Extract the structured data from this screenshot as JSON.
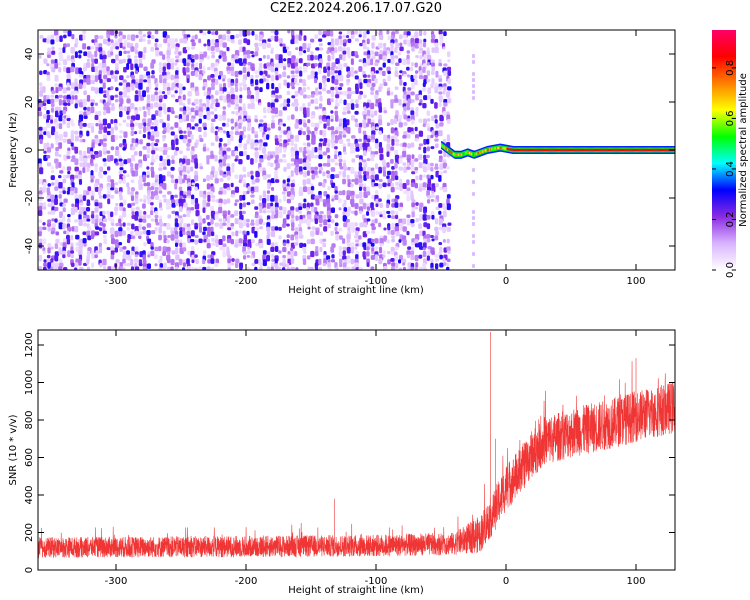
{
  "title": "C2E2.2024.206.17.07.G20",
  "chart_data": [
    {
      "type": "heatmap",
      "xlabel": "Height of straight line (km)",
      "ylabel": "Frequency (Hz)",
      "xlim": [
        -360,
        130
      ],
      "ylim": [
        -50,
        50
      ],
      "xticks": [
        -300,
        -200,
        -100,
        0,
        100
      ],
      "xtick_labels": [
        "-300",
        "-200",
        "-100",
        "0",
        "100"
      ],
      "yticks": [
        -40,
        -20,
        0,
        20,
        40
      ],
      "ytick_labels": [
        "-40",
        "-20",
        "0",
        "20",
        "40"
      ],
      "colorbar": {
        "label": "Normalized spectral amplitude",
        "range": [
          0,
          0.95
        ],
        "ticks": [
          0.0,
          0.2,
          0.4,
          0.6,
          0.8
        ],
        "tick_labels": [
          "0.0",
          "0.2",
          "0.4",
          "0.6",
          "0.8"
        ],
        "colormap": [
          "#ffffff",
          "#d9b3ff",
          "#8a2be2",
          "#0000ff",
          "#00ffff",
          "#00ff00",
          "#ffff00",
          "#ff8000",
          "#ff0000",
          "#ff0066"
        ]
      },
      "noise_region": {
        "x_from": -360,
        "x_to": -45,
        "amplitude": 0.1
      },
      "signal_track": [
        {
          "x": -50,
          "y": 2
        },
        {
          "x": -45,
          "y": 0
        },
        {
          "x": -40,
          "y": -2
        },
        {
          "x": -35,
          "y": -2
        },
        {
          "x": -30,
          "y": -1
        },
        {
          "x": -25,
          "y": -2
        },
        {
          "x": -20,
          "y": -1
        },
        {
          "x": -15,
          "y": 0
        },
        {
          "x": -5,
          "y": 1
        },
        {
          "x": 5,
          "y": 0
        },
        {
          "x": 50,
          "y": 0
        },
        {
          "x": 130,
          "y": 0
        }
      ],
      "grid": false,
      "ticks_on_box": true
    },
    {
      "type": "line",
      "xlabel": "Height of straight line (km)",
      "ylabel": "SNR (10 * v/v)",
      "xlim": [
        -360,
        130
      ],
      "ylim": [
        0,
        1280
      ],
      "xticks": [
        -300,
        -200,
        -100,
        0,
        100
      ],
      "xtick_labels": [
        "-300",
        "-200",
        "-100",
        "0",
        "100"
      ],
      "yticks": [
        0,
        200,
        400,
        600,
        800,
        1000,
        1200
      ],
      "ytick_labels": [
        "0",
        "200",
        "400",
        "600",
        "800",
        "1000",
        "1200"
      ],
      "color": "#f03535",
      "trend": [
        {
          "x": -360,
          "y": 120
        },
        {
          "x": -200,
          "y": 125
        },
        {
          "x": -100,
          "y": 130
        },
        {
          "x": -40,
          "y": 140
        },
        {
          "x": -20,
          "y": 190
        },
        {
          "x": -15,
          "y": 250
        },
        {
          "x": -10,
          "y": 300
        },
        {
          "x": 0,
          "y": 440
        },
        {
          "x": 10,
          "y": 520
        },
        {
          "x": 20,
          "y": 620
        },
        {
          "x": 30,
          "y": 690
        },
        {
          "x": 50,
          "y": 730
        },
        {
          "x": 80,
          "y": 780
        },
        {
          "x": 100,
          "y": 820
        },
        {
          "x": 130,
          "y": 870
        }
      ],
      "spread": [
        {
          "x": -360,
          "y": 110
        },
        {
          "x": -40,
          "y": 120
        },
        {
          "x": -20,
          "y": 200
        },
        {
          "x": 0,
          "y": 250
        },
        {
          "x": 30,
          "y": 260
        },
        {
          "x": 130,
          "y": 280
        }
      ],
      "spikes": [
        {
          "x": -12,
          "y": 1270
        },
        {
          "x": -8,
          "y": 700
        },
        {
          "x": -360,
          "y": 330
        },
        {
          "x": -132,
          "y": 380
        },
        {
          "x": 100,
          "y": 1130
        }
      ],
      "grid": false,
      "ticks_on_box": true
    }
  ]
}
